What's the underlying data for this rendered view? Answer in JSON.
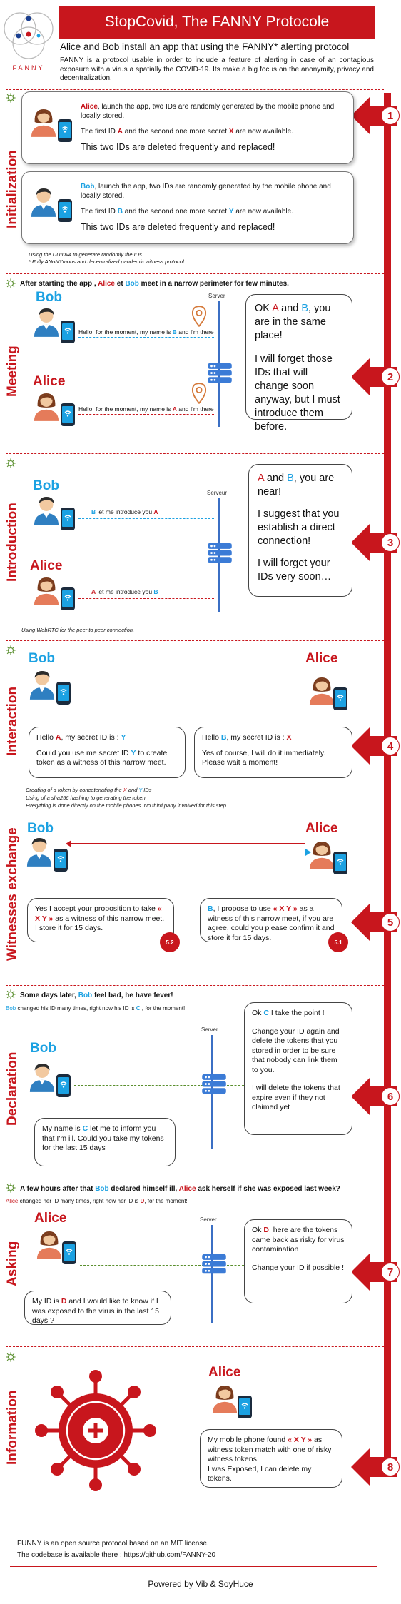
{
  "header": {
    "title": "StopCovid, The FANNY Protocole",
    "logo_text": "FANNY",
    "subtitle": "Alice and Bob install an app that using the FANNY* alerting protocol",
    "intro": "FANNY is a protocol usable in order to include a feature of alerting in case of an contagious exposure with a virus a spatially the COVID-19. Its make a big focus on the anonymity, privacy and decentralization."
  },
  "colors": {
    "brand_red": "#c8161d",
    "bob_blue": "#1ba1e2",
    "server_blue": "#3b6fc4"
  },
  "steps": [
    "1",
    "2",
    "3",
    "4",
    "5",
    "6",
    "7",
    "8"
  ],
  "sections": {
    "initialization": {
      "label": "Initialization",
      "alice": {
        "p1_name": "Alice",
        "p1_rest": ", launch the app, two IDs are randomly generated by the mobile phone and locally stored.",
        "p2_a": "The first ID ",
        "p2_id1": "A",
        "p2_b": " and the second one more secret ",
        "p2_id2": "X",
        "p2_c": " are now available.",
        "p3": "This two IDs are deleted frequently and replaced!"
      },
      "bob": {
        "p1_name": "Bob",
        "p1_rest": ", launch the app, two IDs are randomly generated by the mobile phone and locally stored.",
        "p2_a": "The first ID ",
        "p2_id1": "B",
        "p2_b": " and the second one more secret ",
        "p2_id2": "Y",
        "p2_c": " are now available.",
        "p3": "This two IDs are deleted frequently and replaced!"
      },
      "note1": "Using the UUIDv4 to generate randomly the IDs",
      "note2": "* Fully ANoNYmous and decentralized pandemic witness protocol"
    },
    "meeting": {
      "label": "Meeting",
      "head_a": "After starting the app , ",
      "head_alice": "Alice",
      "head_b": " et ",
      "head_bob": "Bob",
      "head_c": " meet in a narrow perimeter for few minutes.",
      "bob": "Bob",
      "alice": "Alice",
      "server": "Server",
      "bob_msg_a": "Hello, for the moment, my name is ",
      "bob_msg_id": "B",
      "bob_msg_b": " and I'm there",
      "alice_msg_a": "Hello, for the moment, my name is ",
      "alice_msg_id": "A",
      "alice_msg_b": " and I'm there",
      "bubble_a": "OK ",
      "bubble_A": "A",
      "bubble_and": " and ",
      "bubble_B": "B",
      "bubble_b": ", you are in the same place!",
      "bubble_c": "I will forget those IDs that will change soon anyway, but I must introduce them before."
    },
    "introduction": {
      "label": "Introduction",
      "bob": "Bob",
      "alice": "Alice",
      "server": "Serveur",
      "msg_bob_a": "B",
      "msg_bob_b": " let me introduce you ",
      "msg_bob_c": "A",
      "msg_alice_a": "A",
      "msg_alice_b": " let me introduce you  ",
      "msg_alice_c": "B",
      "bubble_A": "A",
      "bubble_and": " and ",
      "bubble_B": "B",
      "bubble_a": ", you are near!",
      "bubble_b": "I suggest that you establish a direct connection!",
      "bubble_c": "I will forget your IDs very soon…",
      "note": "Using WebRTC for the peer to peer connection."
    },
    "interaction": {
      "label": "Interaction",
      "bob": "Bob",
      "alice": "Alice",
      "left_a": "Hello ",
      "left_A": "A",
      "left_b": ", my secret ID is : ",
      "left_Y": "Y",
      "left_c": "Could you use me secret ID ",
      "left_Y2": "Y",
      "left_d": " to create token as a witness of this narrow meet.",
      "right_a": "Hello ",
      "right_B": "B",
      "right_b": ", my secret ID is  : ",
      "right_X": "X",
      "right_c": "Yes of course, I will do it immediately. Please wait a moment!",
      "note1_a": "Creating of a token by concatenating the ",
      "note1_X": "X",
      "note1_b": " and ",
      "note1_Y": "Y",
      "note1_c": " IDs",
      "note2": "Using of a sha256 hashing to generating the token",
      "note3": "Everything is done directly on the mobile phones. No third party involved for this step"
    },
    "witnesses": {
      "label": "Witnesses exchange",
      "bob": "Bob",
      "alice": "Alice",
      "left_a": "Yes I accept your proposition to take ",
      "left_tok": "« X Y »",
      "left_b": " as a witness of this narrow meet. I store it for 15 days.",
      "left_badge": "5.2",
      "right_B": "B",
      "right_a": ", I propose to use ",
      "right_tok": "« X Y »",
      "right_b": " as a witness of this narrow meet, if you are agree, could you please confirm it and store it for 15 days.",
      "right_badge": "5.1"
    },
    "declaration": {
      "label": "Declaration",
      "head_a": "Some days later, ",
      "head_bob": "Bob",
      "head_b": " feel bad, he have fever!",
      "sub_bob": "Bob",
      "sub_a": " changed his ID many times, right now his ID is ",
      "sub_id": "C",
      "sub_b": " , for the moment!",
      "bob": "Bob",
      "server": "Server",
      "left_a": "My name is ",
      "left_C": "C",
      "left_b": " let me to inform you that I'm ill. Could you take my tokens for the last 15 days",
      "bubble_a": "Ok ",
      "bubble_C": "C",
      "bubble_b": " I take the point !",
      "bubble_c": "Change your ID again and delete the tokens that you stored in order to be sure that nobody can link them to you.",
      "bubble_d": "I will delete the tokens that expire even if they not claimed yet"
    },
    "asking": {
      "label": "Asking",
      "head_a": "A few hours after that ",
      "head_bob": "Bob",
      "head_b": " declared himself ill, ",
      "head_alice": "Alice",
      "head_c": " ask herself if she was exposed last week?",
      "sub_alice": "Alice",
      "sub_a": " changed her ID many times, right now her ID is ",
      "sub_id": "D",
      "sub_b": ", for the moment!",
      "alice": "Alice",
      "server": "Server",
      "left_a": "My ID is ",
      "left_D": "D",
      "left_b": " and I would like to know if I was exposed to the virus in the last 15 days ?",
      "bubble_a": "Ok ",
      "bubble_D": "D",
      "bubble_b": ", here are the tokens came back as risky for virus contamination",
      "bubble_c": "Change your ID if possible !"
    },
    "information": {
      "label": "Information",
      "alice": "Alice",
      "text_a": "My mobile phone found ",
      "text_tok": "« X Y »",
      "text_b": " as witness token match with one of risky witness tokens.",
      "text_c": " I was Exposed, I can delete my tokens."
    }
  },
  "footer": {
    "line1": "FUNNY is an open source protocol based on an MIT license.",
    "line2": "The codebase is available there : https://github.com/FANNY-20",
    "powered": "Powered by Vib & SoyHuce"
  }
}
